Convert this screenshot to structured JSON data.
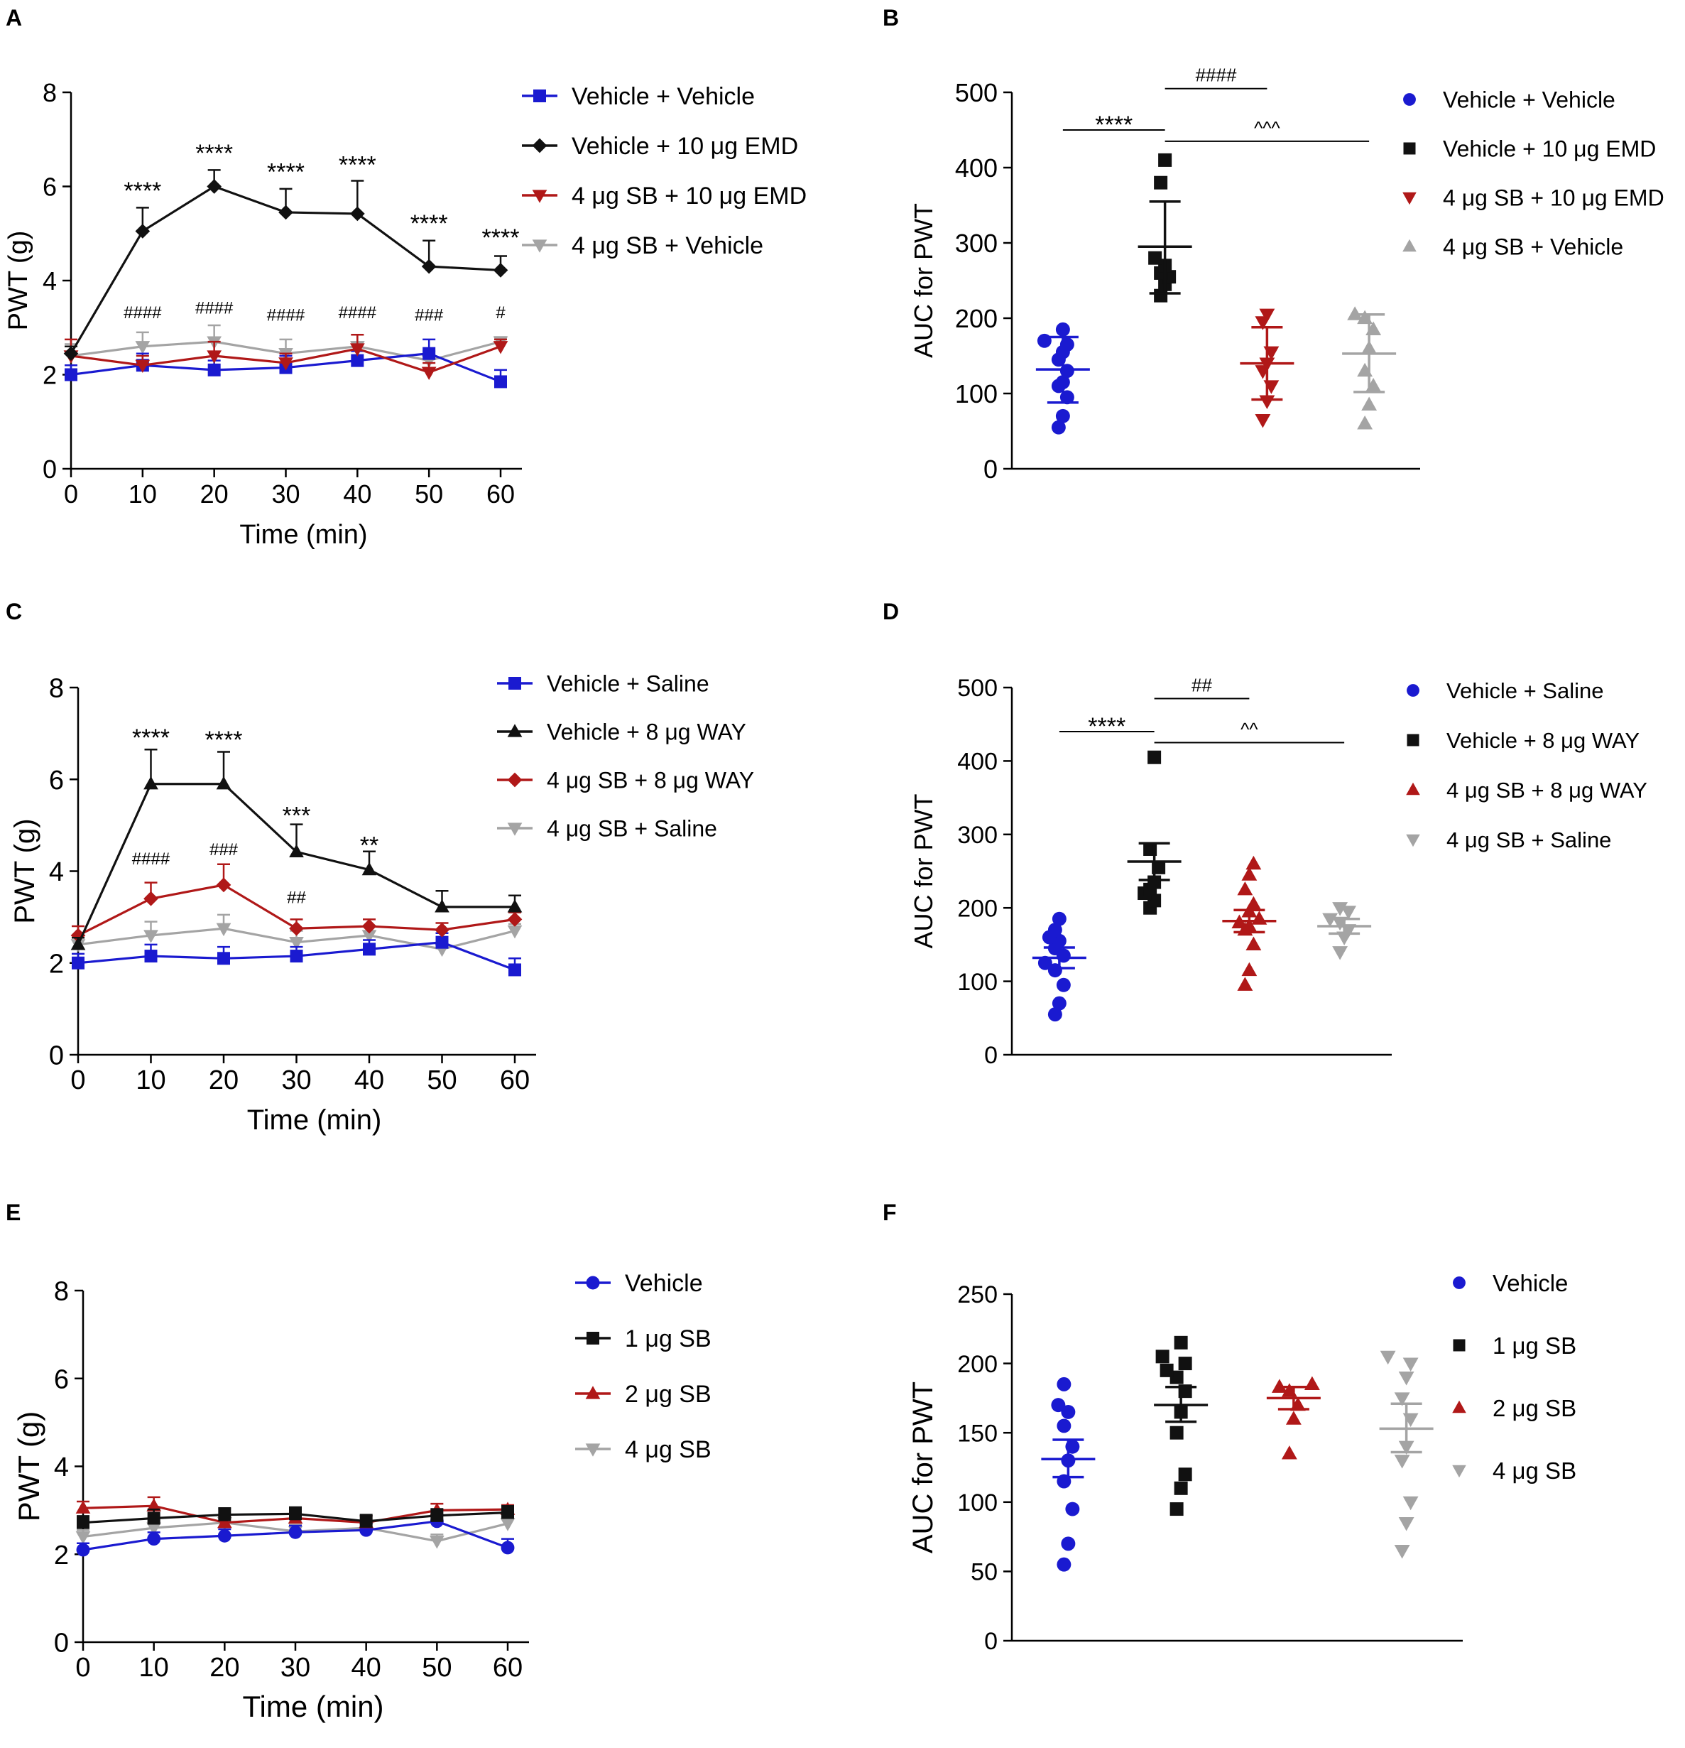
{
  "colors": {
    "blue": "#1a1ad0",
    "black": "#111111",
    "red": "#b01818",
    "gray": "#a4a4a4"
  },
  "chart_data": [
    {
      "panel": "A",
      "type": "line",
      "xlabel": "Time (min)",
      "ylabel": "PWT (g)",
      "xlim": [
        0,
        60
      ],
      "ylim": [
        0,
        8
      ],
      "xticks": [
        "0",
        "10",
        "20",
        "30",
        "40",
        "50",
        "60"
      ],
      "yticks": [
        "0",
        "2",
        "4",
        "6",
        "8"
      ],
      "x": [
        0,
        10,
        20,
        30,
        40,
        50,
        60
      ],
      "series": [
        {
          "name": "Vehicle + Vehicle",
          "color": "blue",
          "marker": "square",
          "values": [
            2.0,
            2.2,
            2.1,
            2.15,
            2.3,
            2.45,
            1.85
          ],
          "err": [
            0.2,
            0.25,
            0.2,
            0.25,
            0.2,
            0.3,
            0.25
          ]
        },
        {
          "name": "Vehicle + 10 μg EMD",
          "color": "black",
          "marker": "diamond",
          "values": [
            2.45,
            5.05,
            6.0,
            5.45,
            5.42,
            4.3,
            4.22
          ],
          "err": [
            0.15,
            0.5,
            0.35,
            0.5,
            0.7,
            0.55,
            0.3
          ]
        },
        {
          "name": "4 μg SB + 10 μg EMD",
          "color": "red",
          "marker": "triangle-down",
          "values": [
            2.4,
            2.2,
            2.4,
            2.25,
            2.55,
            2.05,
            2.6
          ],
          "err": [
            0.35,
            0.2,
            0.3,
            0.2,
            0.3,
            0.2,
            0.15
          ]
        },
        {
          "name": "4 μg SB + Vehicle",
          "color": "gray",
          "marker": "triangle-down",
          "values": [
            2.4,
            2.6,
            2.7,
            2.45,
            2.6,
            2.3,
            2.7
          ],
          "err": [
            0.25,
            0.3,
            0.35,
            0.3,
            0.25,
            0.2,
            0.1
          ]
        }
      ],
      "annotations": [
        {
          "x": 10,
          "y": 5.95,
          "text": "****"
        },
        {
          "x": 20,
          "y": 6.75,
          "text": "****"
        },
        {
          "x": 30,
          "y": 6.35,
          "text": "****"
        },
        {
          "x": 40,
          "y": 6.5,
          "text": "****"
        },
        {
          "x": 50,
          "y": 5.25,
          "text": "****"
        },
        {
          "x": 60,
          "y": 4.95,
          "text": "****"
        },
        {
          "x": 10,
          "y": 3.2,
          "text": "####"
        },
        {
          "x": 20,
          "y": 3.3,
          "text": "####"
        },
        {
          "x": 30,
          "y": 3.15,
          "text": "####"
        },
        {
          "x": 40,
          "y": 3.2,
          "text": "####"
        },
        {
          "x": 50,
          "y": 3.15,
          "text": "###"
        },
        {
          "x": 60,
          "y": 3.2,
          "text": "#"
        }
      ]
    },
    {
      "panel": "B",
      "type": "scatter",
      "ylabel": "AUC for PWT",
      "ylim": [
        0,
        500
      ],
      "yticks": [
        "0",
        "100",
        "200",
        "300",
        "400",
        "500"
      ],
      "groups": [
        {
          "name": "Vehicle + Vehicle",
          "color": "blue",
          "marker": "circle",
          "mean": 132,
          "lo": 88,
          "hi": 175,
          "points": [
            55,
            70,
            95,
            110,
            115,
            130,
            145,
            155,
            165,
            170,
            185
          ]
        },
        {
          "name": "Vehicle + 10 μg EMD",
          "color": "black",
          "marker": "square",
          "mean": 295,
          "lo": 233,
          "hi": 355,
          "points": [
            230,
            245,
            255,
            260,
            270,
            280,
            380,
            410
          ]
        },
        {
          "name": "4 μg SB + 10 μg EMD",
          "color": "red",
          "marker": "triangle-down",
          "mean": 140,
          "lo": 92,
          "hi": 188,
          "points": [
            65,
            90,
            110,
            130,
            140,
            155,
            195,
            205
          ]
        },
        {
          "name": "4 μg SB + Vehicle",
          "color": "gray",
          "marker": "triangle-up",
          "mean": 153,
          "lo": 102,
          "hi": 205,
          "points": [
            60,
            85,
            110,
            130,
            160,
            185,
            200,
            205
          ]
        }
      ],
      "brackets": [
        {
          "from": 0,
          "to": 1,
          "y": 450,
          "text": "****"
        },
        {
          "from": 1,
          "to": 2,
          "y": 505,
          "text": "####"
        },
        {
          "from": 1,
          "to": 3,
          "y": 435,
          "text": "^^^"
        }
      ]
    },
    {
      "panel": "C",
      "type": "line",
      "xlabel": "Time (min)",
      "ylabel": "PWT (g)",
      "xlim": [
        0,
        60
      ],
      "ylim": [
        0,
        8
      ],
      "xticks": [
        "0",
        "10",
        "20",
        "30",
        "40",
        "50",
        "60"
      ],
      "yticks": [
        "0",
        "2",
        "4",
        "6",
        "8"
      ],
      "x": [
        0,
        10,
        20,
        30,
        40,
        50,
        60
      ],
      "series": [
        {
          "name": "Vehicle + Saline",
          "color": "blue",
          "marker": "square",
          "values": [
            2.0,
            2.15,
            2.1,
            2.15,
            2.3,
            2.45,
            1.85
          ],
          "err": [
            0.2,
            0.25,
            0.25,
            0.2,
            0.2,
            0.2,
            0.25
          ]
        },
        {
          "name": "Vehicle + 8 μg WAY",
          "color": "black",
          "marker": "triangle-up",
          "values": [
            2.4,
            5.9,
            5.9,
            4.42,
            4.03,
            3.22,
            3.22
          ],
          "err": [
            0.15,
            0.75,
            0.7,
            0.6,
            0.4,
            0.35,
            0.25
          ]
        },
        {
          "name": "4 μg SB + 8 μg WAY",
          "color": "red",
          "marker": "diamond",
          "values": [
            2.6,
            3.4,
            3.7,
            2.75,
            2.8,
            2.72,
            2.95
          ],
          "err": [
            0.2,
            0.35,
            0.45,
            0.2,
            0.15,
            0.15,
            0.15
          ]
        },
        {
          "name": "4 μg SB + Saline",
          "color": "gray",
          "marker": "triangle-down",
          "values": [
            2.4,
            2.6,
            2.75,
            2.45,
            2.6,
            2.3,
            2.7
          ],
          "err": [
            0.2,
            0.3,
            0.3,
            0.25,
            0.2,
            0.2,
            0.15
          ]
        }
      ],
      "annotations": [
        {
          "x": 10,
          "y": 6.95,
          "text": "****"
        },
        {
          "x": 20,
          "y": 6.9,
          "text": "****"
        },
        {
          "x": 30,
          "y": 5.25,
          "text": "***"
        },
        {
          "x": 40,
          "y": 4.6,
          "text": "**"
        },
        {
          "x": 10,
          "y": 4.15,
          "text": "####"
        },
        {
          "x": 20,
          "y": 4.35,
          "text": "###"
        },
        {
          "x": 30,
          "y": 3.3,
          "text": "##"
        }
      ]
    },
    {
      "panel": "D",
      "type": "scatter",
      "ylabel": "AUC for PWT",
      "ylim": [
        0,
        500
      ],
      "yticks": [
        "0",
        "100",
        "200",
        "300",
        "400",
        "500"
      ],
      "groups": [
        {
          "name": "Vehicle + Saline",
          "color": "blue",
          "marker": "circle",
          "mean": 132,
          "lo": 118,
          "hi": 146,
          "points": [
            55,
            70,
            95,
            115,
            125,
            135,
            145,
            155,
            160,
            170,
            185
          ]
        },
        {
          "name": "Vehicle + 8 μg WAY",
          "color": "black",
          "marker": "square",
          "mean": 263,
          "lo": 238,
          "hi": 288,
          "points": [
            200,
            210,
            220,
            225,
            235,
            255,
            280,
            405
          ]
        },
        {
          "name": "4 μg SB + 8 μg WAY",
          "color": "red",
          "marker": "triangle-up",
          "mean": 182,
          "lo": 167,
          "hi": 197,
          "points": [
            95,
            115,
            150,
            170,
            175,
            180,
            185,
            195,
            205,
            225,
            245,
            260
          ]
        },
        {
          "name": "4 μg SB + Saline",
          "color": "gray",
          "marker": "triangle-down",
          "mean": 175,
          "lo": 165,
          "hi": 185,
          "points": [
            140,
            160,
            170,
            180,
            185,
            195,
            200
          ]
        }
      ],
      "brackets": [
        {
          "from": 0,
          "to": 1,
          "y": 440,
          "text": "****"
        },
        {
          "from": 1,
          "to": 2,
          "y": 485,
          "text": "##"
        },
        {
          "from": 1,
          "to": 3,
          "y": 425,
          "text": "^^"
        }
      ]
    },
    {
      "panel": "E",
      "type": "line",
      "xlabel": "Time (min)",
      "ylabel": "PWT (g)",
      "xlim": [
        0,
        60
      ],
      "ylim": [
        0,
        8
      ],
      "xticks": [
        "0",
        "10",
        "20",
        "30",
        "40",
        "50",
        "60"
      ],
      "yticks": [
        "0",
        "2",
        "4",
        "6",
        "8"
      ],
      "x": [
        0,
        10,
        20,
        30,
        40,
        50,
        60
      ],
      "series": [
        {
          "name": "Vehicle",
          "color": "blue",
          "marker": "circle",
          "values": [
            2.1,
            2.35,
            2.42,
            2.5,
            2.55,
            2.75,
            2.15
          ],
          "err": [
            0.15,
            0.15,
            0.15,
            0.15,
            0.15,
            0.15,
            0.2
          ]
        },
        {
          "name": "1 μg SB",
          "color": "black",
          "marker": "square",
          "values": [
            2.72,
            2.82,
            2.9,
            2.92,
            2.75,
            2.88,
            2.95
          ],
          "err": [
            0.15,
            0.2,
            0.15,
            0.15,
            0.15,
            0.15,
            0.15
          ]
        },
        {
          "name": "2 μg SB",
          "color": "red",
          "marker": "triangle-up",
          "values": [
            3.05,
            3.1,
            2.72,
            2.82,
            2.72,
            3.0,
            3.02
          ],
          "err": [
            0.15,
            0.2,
            0.15,
            0.15,
            0.15,
            0.15,
            0.1
          ]
        },
        {
          "name": "4 μg SB",
          "color": "gray",
          "marker": "triangle-down",
          "values": [
            2.4,
            2.6,
            2.72,
            2.52,
            2.6,
            2.3,
            2.7
          ],
          "err": [
            0.15,
            0.15,
            0.15,
            0.15,
            0.15,
            0.15,
            0.15
          ]
        }
      ],
      "annotations": []
    },
    {
      "panel": "F",
      "type": "scatter",
      "ylabel": "AUC for PWT",
      "ylim": [
        0,
        250
      ],
      "yticks": [
        "0",
        "50",
        "100",
        "150",
        "200",
        "250"
      ],
      "groups": [
        {
          "name": "Vehicle",
          "color": "blue",
          "marker": "circle",
          "mean": 131,
          "lo": 118,
          "hi": 145,
          "points": [
            55,
            70,
            95,
            115,
            130,
            140,
            155,
            165,
            170,
            185
          ]
        },
        {
          "name": "1 μg SB",
          "color": "black",
          "marker": "square",
          "mean": 170,
          "lo": 158,
          "hi": 183,
          "points": [
            95,
            110,
            120,
            150,
            165,
            180,
            190,
            195,
            200,
            205,
            215
          ]
        },
        {
          "name": "2 μg SB",
          "color": "red",
          "marker": "triangle-up",
          "mean": 175,
          "lo": 167,
          "hi": 183,
          "points": [
            135,
            160,
            170,
            180,
            183,
            185
          ]
        },
        {
          "name": "4 μg SB",
          "color": "gray",
          "marker": "triangle-down",
          "mean": 153,
          "lo": 136,
          "hi": 171,
          "points": [
            65,
            85,
            100,
            130,
            140,
            160,
            175,
            190,
            200,
            205
          ]
        }
      ],
      "brackets": []
    }
  ]
}
